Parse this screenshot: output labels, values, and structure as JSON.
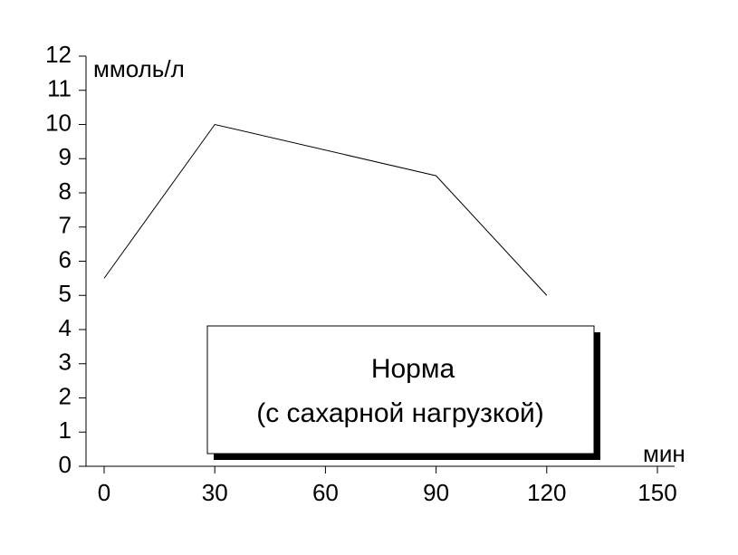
{
  "chart_data": {
    "type": "line",
    "y_label": "ммоль/л",
    "x_label": "мин",
    "annotation": [
      "Норма",
      "(с сахарной нагрузкой)"
    ],
    "x": [
      0,
      30,
      90,
      120
    ],
    "series": [
      {
        "color": "#000000",
        "values": [
          5.5,
          10,
          8.5,
          5
        ]
      }
    ],
    "xlim": [
      -5,
      155
    ],
    "ylim": [
      0,
      12
    ],
    "xticks": [
      0,
      30,
      60,
      90,
      120,
      150
    ],
    "yticks": [
      0,
      1,
      2,
      3,
      4,
      5,
      6,
      7,
      8,
      9,
      10,
      11,
      12
    ],
    "grid": false
  }
}
